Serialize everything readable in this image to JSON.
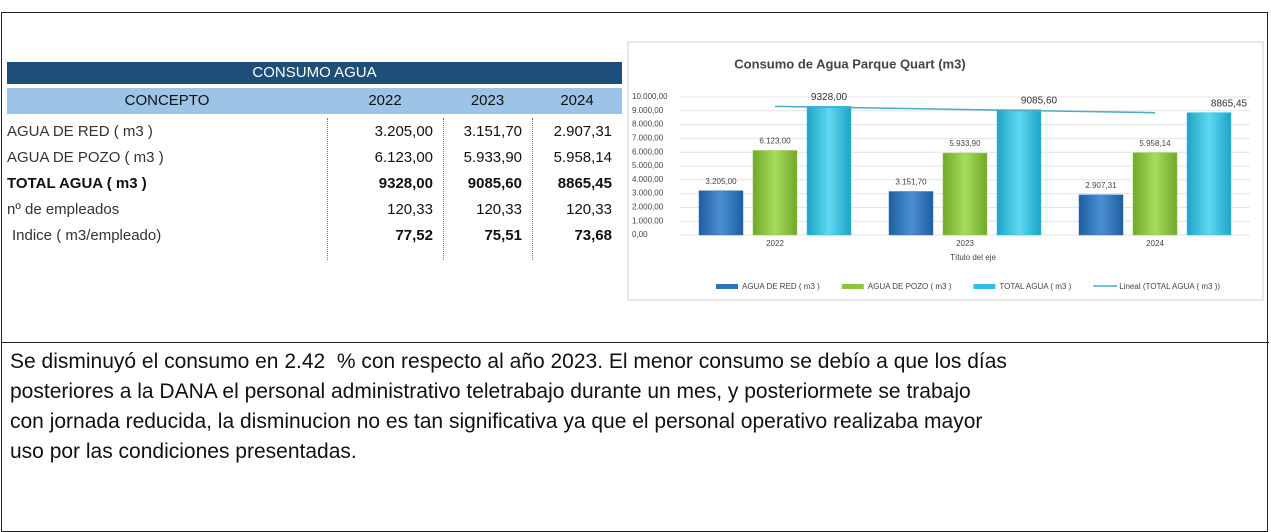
{
  "table": {
    "title": "CONSUMO AGUA",
    "header": [
      "CONCEPTO",
      "2022",
      "2023",
      "2024"
    ],
    "rows": [
      [
        "AGUA DE RED ( m3 )",
        "3.205,00",
        "3.151,70",
        "2.907,31"
      ],
      [
        "AGUA DE POZO ( m3 )",
        "6.123,00",
        "5.933,90",
        "5.958,14"
      ],
      [
        "TOTAL AGUA ( m3 )",
        "9328,00",
        "9085,60",
        "8865,45"
      ],
      [
        "nº de empleados",
        "120,33",
        "120,33",
        "120,33"
      ],
      [
        "Indice ( m3/empleado)",
        "77,52",
        "75,51",
        "73,68"
      ]
    ]
  },
  "chart_data": {
    "type": "bar",
    "title": "Consumo de Agua Parque Quart (m3)",
    "xlabel": "Título del eje",
    "categories": [
      "2022",
      "2023",
      "2024"
    ],
    "series": [
      {
        "name": "AGUA DE RED ( m3 )",
        "color": "#2e75b6",
        "values": [
          3205,
          3151.7,
          2907.31
        ],
        "value_labels": [
          "3.205,00",
          "3.151,70",
          "2.907,31"
        ]
      },
      {
        "name": "AGUA DE POZO ( m3 )",
        "color": "#8cc63f",
        "values": [
          6123,
          5933.9,
          5958.14
        ],
        "value_labels": [
          "6.123,00",
          "5.933,90",
          "5.958,14"
        ]
      },
      {
        "name": "TOTAL AGUA ( m3 )",
        "color": "#2cc0e2",
        "values": [
          9328,
          9085.6,
          8865.45
        ],
        "value_labels": [
          "9328,00",
          "9085,60",
          "8865,45"
        ]
      },
      {
        "name": "Lineal (TOTAL AGUA ( m3 ))",
        "type": "line",
        "color": "#4bacc6",
        "values": [
          9324.29,
          9093.02,
          8861.74
        ]
      }
    ],
    "ylim": [
      0,
      10000
    ],
    "yticks": [
      {
        "value": 0,
        "label": "0,00"
      },
      {
        "value": 1000,
        "label": "1.000,00"
      },
      {
        "value": 2000,
        "label": "2.000,00"
      },
      {
        "value": 3000,
        "label": "3.000,00"
      },
      {
        "value": 4000,
        "label": "4.000,00"
      },
      {
        "value": 5000,
        "label": "5.000,00"
      },
      {
        "value": 6000,
        "label": "6.000,00"
      },
      {
        "value": 7000,
        "label": "7.000,00"
      },
      {
        "value": 8000,
        "label": "8.000,00"
      },
      {
        "value": 9000,
        "label": "9.000,00"
      },
      {
        "value": 10000,
        "label": "10.000,00"
      }
    ],
    "grid": true,
    "legend": "bottom"
  },
  "text": {
    "lines": [
      "Se disminuyó el consumo en 2.42  % con respecto al año 2023. El menor consumo se debío a que los días",
      "posteriores a la DANA el personal administrativo teletrabajo durante un mes, y posteriormete se trabajo",
      "con jornada reducida, la disminucion no es tan significativa ya que el personal operativo realizaba mayor",
      "uso por las condiciones presentadas."
    ]
  }
}
